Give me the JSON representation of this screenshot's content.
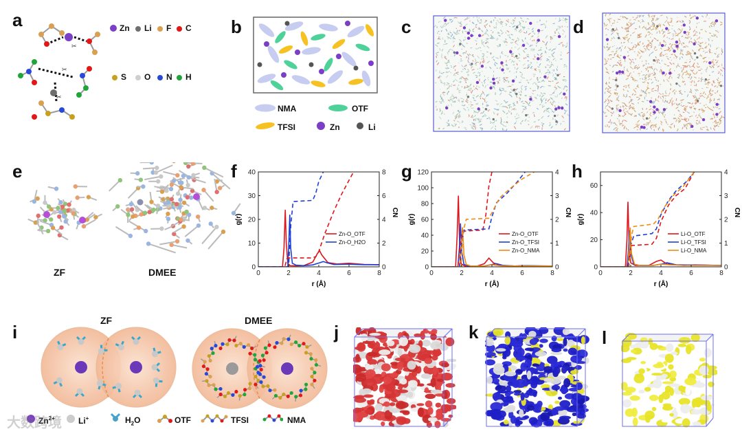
{
  "panels": {
    "a": "a",
    "b": "b",
    "c": "c",
    "d": "d",
    "e": "e",
    "f": "f",
    "g": "g",
    "h": "h",
    "i": "i",
    "j": "j",
    "k": "k",
    "l": "l"
  },
  "legend_a": {
    "Zn": "Zn",
    "Li": "Li",
    "F": "F",
    "C": "C",
    "S": "S",
    "O": "O",
    "N": "N",
    "H": "H"
  },
  "legend_b": {
    "NMA": "NMA",
    "OTF": "OTF",
    "TFSI": "TFSI",
    "Zn": "Zn",
    "Li": "Li"
  },
  "panel_e": {
    "zf": "ZF",
    "dmee": "DMEE"
  },
  "panel_i": {
    "zf": "ZF",
    "dmee": "DMEE",
    "legend": {
      "zn": "Zn",
      "zn_sup": "2+",
      "li": "Li",
      "li_sup": "+",
      "h2o": "H",
      "h2o_sub": "2",
      "h2o_end": "O",
      "otf": "OTF",
      "tfsi": "TFSI",
      "nma": "NMA"
    },
    "watermark": "大数跨境"
  },
  "colors": {
    "zn": "#7a3fc4",
    "li": "#6e6e6e",
    "red": "#e0141b",
    "blue": "#1e3fd6",
    "orange": "#f08a12",
    "nma": "#c6cdf0",
    "otf": "#4fd19a",
    "tfsi": "#f6c223",
    "halo": "#f7c6a6"
  },
  "chart_data": [
    {
      "id": "f",
      "type": "line",
      "xlabel": "r (Å)",
      "ylabel": "g(r)",
      "y2label": "CN",
      "xlim": [
        0,
        8
      ],
      "ylim": [
        0,
        40
      ],
      "y2lim": [
        0,
        8
      ],
      "xticks": [
        "0",
        "2",
        "4",
        "6",
        "8"
      ],
      "yticks": [
        "0",
        "10",
        "20",
        "30",
        "40"
      ],
      "y2ticks": [
        "0",
        "2",
        "4",
        "6",
        "8"
      ],
      "legend": [
        {
          "name": "Zn-O_OTF",
          "color": "#e0141b"
        },
        {
          "name": "Zn-O_H2O",
          "color": "#1e3fd6"
        }
      ],
      "series": [
        {
          "name": "Zn-O_OTF g(r)",
          "color": "#e0141b",
          "dash": false,
          "axis": "left",
          "x": [
            0,
            1.6,
            1.7,
            1.78,
            1.85,
            1.95,
            2.1,
            2.5,
            3.0,
            3.6,
            3.9,
            4.05,
            4.2,
            4.6,
            5.2,
            6.0,
            7.0,
            8.0
          ],
          "y": [
            0,
            0,
            8,
            24,
            10,
            1.5,
            0.5,
            0.4,
            0.5,
            2.0,
            5.5,
            6.8,
            5.0,
            1.8,
            1.2,
            1.5,
            1.0,
            0.9
          ]
        },
        {
          "name": "Zn-O_H2O g(r)",
          "color": "#1e3fd6",
          "dash": false,
          "axis": "left",
          "x": [
            0,
            1.95,
            2.02,
            2.08,
            2.14,
            2.25,
            2.5,
            3.0,
            3.6,
            4.0,
            4.3,
            4.6,
            5.0,
            6.0,
            7.0,
            8.0
          ],
          "y": [
            0,
            0,
            10,
            22,
            8,
            1.5,
            0.7,
            0.5,
            0.8,
            1.6,
            2.2,
            1.6,
            1.0,
            1.1,
            0.9,
            0.9
          ]
        },
        {
          "name": "Zn-O_OTF CN",
          "color": "#e0141b",
          "dash": true,
          "axis": "right",
          "x": [
            0,
            1.75,
            1.9,
            2.0,
            3.5,
            3.8,
            4.0,
            4.4,
            5.0,
            5.5,
            6.0,
            6.3
          ],
          "y": [
            0,
            0,
            0.7,
            0.75,
            0.75,
            0.85,
            1.3,
            2.8,
            4.7,
            6.1,
            7.3,
            8.0
          ]
        },
        {
          "name": "Zn-O_H2O CN",
          "color": "#1e3fd6",
          "dash": true,
          "axis": "right",
          "x": [
            0,
            2.0,
            2.15,
            2.3,
            3.6,
            3.8,
            4.0,
            4.3
          ],
          "y": [
            0,
            0,
            3.5,
            5.5,
            5.6,
            6.2,
            7.2,
            8.0
          ]
        }
      ]
    },
    {
      "id": "g",
      "type": "line",
      "xlabel": "r (Å)",
      "ylabel": "g(r)",
      "y2label": "CN",
      "xlim": [
        0,
        8
      ],
      "ylim": [
        0,
        120
      ],
      "y2lim": [
        0,
        4
      ],
      "xticks": [
        "0",
        "2",
        "4",
        "6",
        "8"
      ],
      "yticks": [
        "0",
        "20",
        "40",
        "60",
        "80",
        "100",
        "120"
      ],
      "y2ticks": [
        "0",
        "1",
        "2",
        "3",
        "4"
      ],
      "legend": [
        {
          "name": "Zn-O_OTF",
          "color": "#e0141b"
        },
        {
          "name": "Zn-O_TFSI",
          "color": "#1e3fd6"
        },
        {
          "name": "Zn-O_NMA",
          "color": "#f08a12"
        }
      ],
      "series": [
        {
          "name": "Zn-O_OTF g(r)",
          "color": "#e0141b",
          "dash": false,
          "axis": "left",
          "x": [
            0,
            1.6,
            1.7,
            1.78,
            1.86,
            1.96,
            2.2,
            3.0,
            3.5,
            3.8,
            4.1,
            4.6,
            5.5,
            6.3,
            7.0,
            8.0
          ],
          "y": [
            0,
            0,
            40,
            90,
            30,
            4,
            1,
            0.8,
            4,
            11,
            5,
            1.5,
            1,
            1.4,
            1,
            1
          ]
        },
        {
          "name": "Zn-O_TFSI g(r)",
          "color": "#1e3fd6",
          "dash": false,
          "axis": "left",
          "x": [
            0,
            1.75,
            1.85,
            1.92,
            2.0,
            2.15,
            2.5,
            3.5,
            4.0,
            4.3,
            4.7,
            5.5,
            6.3,
            8.0
          ],
          "y": [
            0,
            0,
            25,
            55,
            20,
            3,
            1,
            1,
            3,
            4,
            2,
            1,
            1.5,
            1
          ]
        },
        {
          "name": "Zn-O_NMA g(r)",
          "color": "#f08a12",
          "dash": false,
          "axis": "left",
          "x": [
            0,
            1.85,
            1.95,
            2.05,
            2.15,
            2.3,
            2.6,
            3.5,
            4.0,
            4.5,
            5.5,
            8.0
          ],
          "y": [
            0,
            0,
            20,
            50,
            15,
            3,
            1,
            1,
            2.5,
            1.5,
            1,
            1
          ]
        },
        {
          "name": "Zn-O_OTF CN",
          "color": "#e0141b",
          "dash": true,
          "axis": "right",
          "x": [
            0,
            1.75,
            1.9,
            2.05,
            3.4,
            3.6,
            3.8,
            4.0
          ],
          "y": [
            0,
            0,
            0.9,
            1.5,
            1.55,
            2.2,
            3.4,
            4.0
          ]
        },
        {
          "name": "Zn-O_TFSI CN",
          "color": "#1e3fd6",
          "dash": true,
          "axis": "right",
          "x": [
            0,
            1.85,
            2.0,
            2.15,
            3.8,
            4.0,
            4.3,
            5.0,
            5.7,
            6.2
          ],
          "y": [
            0,
            0,
            1.0,
            1.55,
            1.6,
            2.1,
            2.7,
            3.1,
            3.6,
            4.0
          ]
        },
        {
          "name": "Zn-O_NMA CN",
          "color": "#f08a12",
          "dash": true,
          "axis": "right",
          "x": [
            0,
            1.95,
            2.1,
            2.3,
            3.8,
            4.1,
            4.5,
            5.2,
            6.0,
            6.8
          ],
          "y": [
            0,
            0,
            1.5,
            2.0,
            2.05,
            2.4,
            2.9,
            3.3,
            3.7,
            4.0
          ]
        }
      ]
    },
    {
      "id": "h",
      "type": "line",
      "xlabel": "r (Å)",
      "ylabel": "g(r)",
      "y2label": "CN",
      "xlim": [
        0,
        8
      ],
      "ylim": [
        0,
        70
      ],
      "y2lim": [
        0,
        4
      ],
      "xticks": [
        "0",
        "2",
        "4",
        "6",
        "8"
      ],
      "yticks": [
        "0",
        "20",
        "40",
        "60"
      ],
      "y2ticks": [
        "0",
        "1",
        "2",
        "3",
        "4"
      ],
      "legend": [
        {
          "name": "Li-O_OTF",
          "color": "#e0141b"
        },
        {
          "name": "Li-O_TFSI",
          "color": "#1e3fd6"
        },
        {
          "name": "Li-O_NMA",
          "color": "#f08a12"
        }
      ],
      "series": [
        {
          "name": "Li-O_OTF g(r)",
          "color": "#e0141b",
          "dash": false,
          "axis": "left",
          "x": [
            0,
            1.65,
            1.75,
            1.82,
            1.9,
            2.0,
            2.3,
            3.2,
            3.7,
            4.0,
            4.4,
            5.5,
            6.2,
            8.0
          ],
          "y": [
            0,
            0,
            20,
            48,
            15,
            3,
            1,
            1,
            4,
            5,
            2,
            1,
            1.4,
            1
          ]
        },
        {
          "name": "Li-O_TFSI g(r)",
          "color": "#1e3fd6",
          "dash": false,
          "axis": "left",
          "x": [
            0,
            1.75,
            1.85,
            1.92,
            2.0,
            2.2,
            2.6,
            3.5,
            4.0,
            4.4,
            5.0,
            6.2,
            8.0
          ],
          "y": [
            0,
            0,
            12,
            27,
            10,
            2,
            1,
            1,
            2,
            3,
            1.5,
            1.3,
            1
          ]
        },
        {
          "name": "Li-O_NMA g(r)",
          "color": "#f08a12",
          "dash": false,
          "axis": "left",
          "x": [
            0,
            1.8,
            1.9,
            1.97,
            2.05,
            2.25,
            2.6,
            3.5,
            4.0,
            4.5,
            5.5,
            8.0
          ],
          "y": [
            0,
            0,
            14,
            29,
            10,
            2,
            1,
            1,
            2,
            1.5,
            1,
            1
          ]
        },
        {
          "name": "Li-O_OTF CN",
          "color": "#e0141b",
          "dash": true,
          "axis": "right",
          "x": [
            0,
            1.8,
            1.95,
            2.05,
            3.4,
            3.7,
            4.0,
            4.5,
            5.0,
            5.6,
            6.2
          ],
          "y": [
            0,
            0,
            0.6,
            0.9,
            0.95,
            1.2,
            1.9,
            2.6,
            3.0,
            3.3,
            4.0
          ]
        },
        {
          "name": "Li-O_TFSI CN",
          "color": "#1e3fd6",
          "dash": true,
          "axis": "right",
          "x": [
            0,
            1.85,
            2.0,
            2.2,
            3.4,
            3.7,
            4.0,
            4.5,
            5.0,
            5.7,
            6.2
          ],
          "y": [
            0,
            0,
            0.9,
            1.3,
            1.4,
            1.6,
            2.2,
            2.8,
            3.2,
            3.6,
            4.0
          ]
        },
        {
          "name": "Li-O_NMA CN",
          "color": "#f08a12",
          "dash": true,
          "axis": "right",
          "x": [
            0,
            1.9,
            2.05,
            2.2,
            3.5,
            3.8,
            4.2,
            4.8,
            5.5,
            6.2
          ],
          "y": [
            0,
            0,
            1.3,
            1.7,
            1.8,
            2.0,
            2.5,
            3.0,
            3.4,
            4.0
          ]
        }
      ]
    }
  ]
}
